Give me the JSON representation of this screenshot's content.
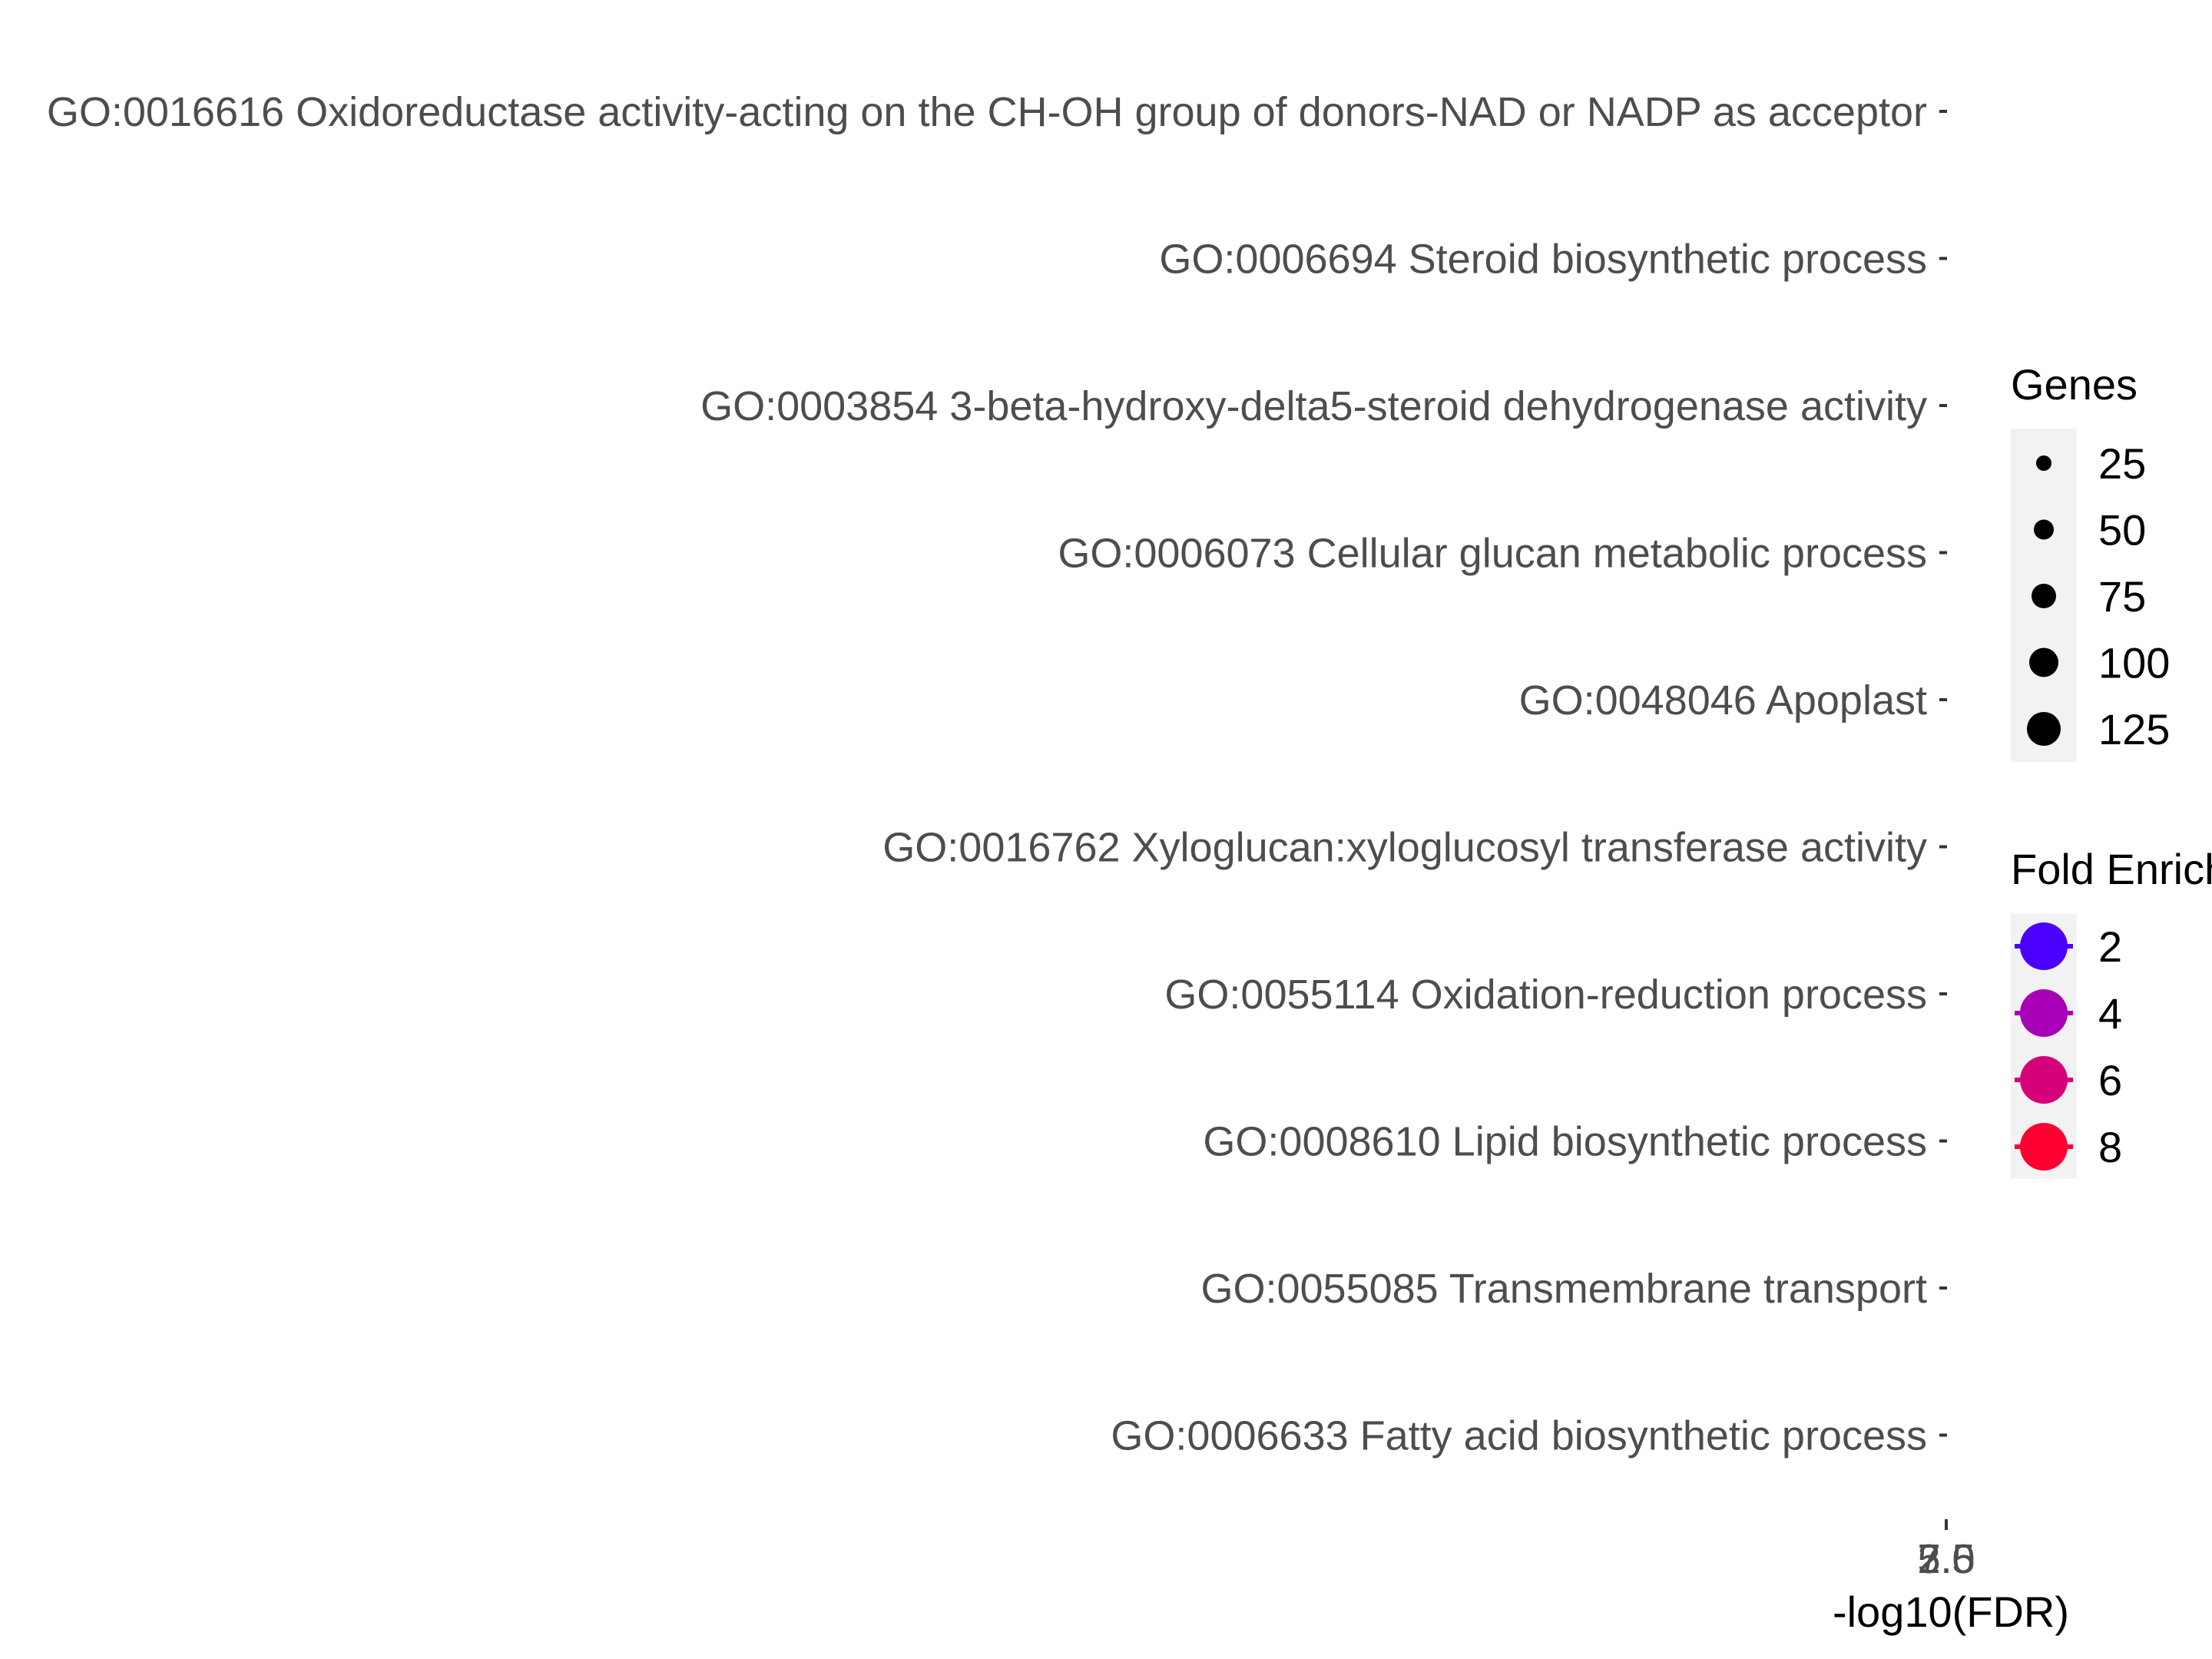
{
  "chart_data": {
    "type": "scatter",
    "title": "",
    "xlabel": "-log10(FDR)",
    "ylabel": "",
    "categories": [
      "GO:0016616 Oxidoreductase activity-acting on the CH-OH group of donors-NAD or NADP as acceptor",
      "GO:0006694 Steroid biosynthetic process",
      "GO:0003854 3-beta-hydroxy-delta5-steroid dehydrogenase activity",
      "GO:0006073 Cellular glucan metabolic process",
      "GO:0048046 Apoplast",
      "GO:0016762 Xyloglucan:xyloglucosyl transferase activity",
      "GO:0055114 Oxidation-reduction process",
      "GO:0008610 Lipid biosynthetic process",
      "GO:0055085 Transmembrane transport",
      "GO:0006633 Fatty acid biosynthetic process"
    ],
    "x_ticks": [
      "2.5",
      "5.0",
      "7.5"
    ],
    "points": [],
    "grid": false,
    "legend_placement": "right",
    "size_legend": {
      "title": "Genes",
      "values": [
        25,
        50,
        75,
        100,
        125
      ],
      "labels": [
        "25",
        "50",
        "75",
        "100",
        "125"
      ]
    },
    "color_legend": {
      "title": "Fold Enrichment",
      "values": [
        2,
        4,
        6,
        8
      ],
      "labels": [
        "2",
        "4",
        "6",
        "8"
      ],
      "colors": [
        "#4b00ff",
        "#a700b8",
        "#d6007a",
        "#ff0030"
      ]
    }
  }
}
